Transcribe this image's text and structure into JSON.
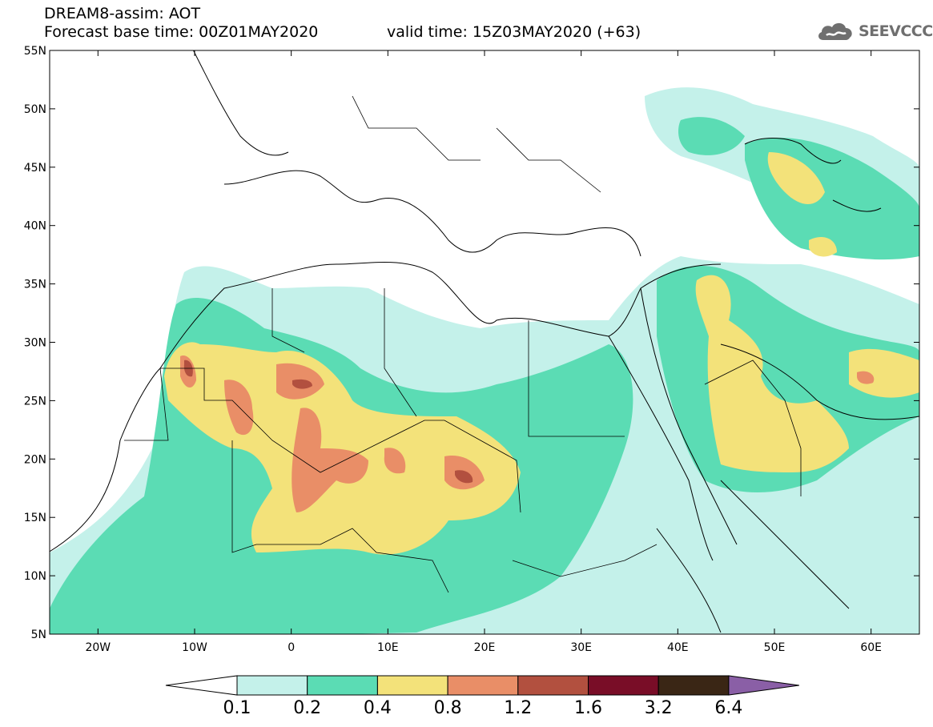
{
  "header": {
    "line1": "DREAM8-assim: AOT",
    "line2": "Forecast base time: 00Z01MAY2020",
    "valid": "valid time: 15Z03MAY2020 (+63)"
  },
  "logo": {
    "text": "SEEVCCC",
    "icon": "cloud-logo-icon"
  },
  "map": {
    "lon_range": [
      -25,
      65
    ],
    "lat_range": [
      5,
      55
    ],
    "x_ticks": [
      "20W",
      "10W",
      "0",
      "10E",
      "20E",
      "30E",
      "40E",
      "50E",
      "60E"
    ],
    "y_ticks": [
      "55N",
      "50N",
      "45N",
      "40N",
      "35N",
      "30N",
      "25N",
      "20N",
      "15N",
      "10N",
      "5N"
    ]
  },
  "legend": {
    "levels": [
      "0.1",
      "0.2",
      "0.4",
      "0.8",
      "1.2",
      "1.6",
      "3.2",
      "6.4"
    ],
    "colors": [
      "#ffffff",
      "#c4f1ea",
      "#5bdcb4",
      "#f3e27a",
      "#e98e67",
      "#b2503f",
      "#790d27",
      "#3a2615",
      "#8a5fa6"
    ]
  },
  "colors": {
    "very_light": "#c4f1ea",
    "light": "#5bdcb4",
    "medium": "#f3e27a",
    "high": "#e98e67",
    "very_high": "#b2503f"
  }
}
